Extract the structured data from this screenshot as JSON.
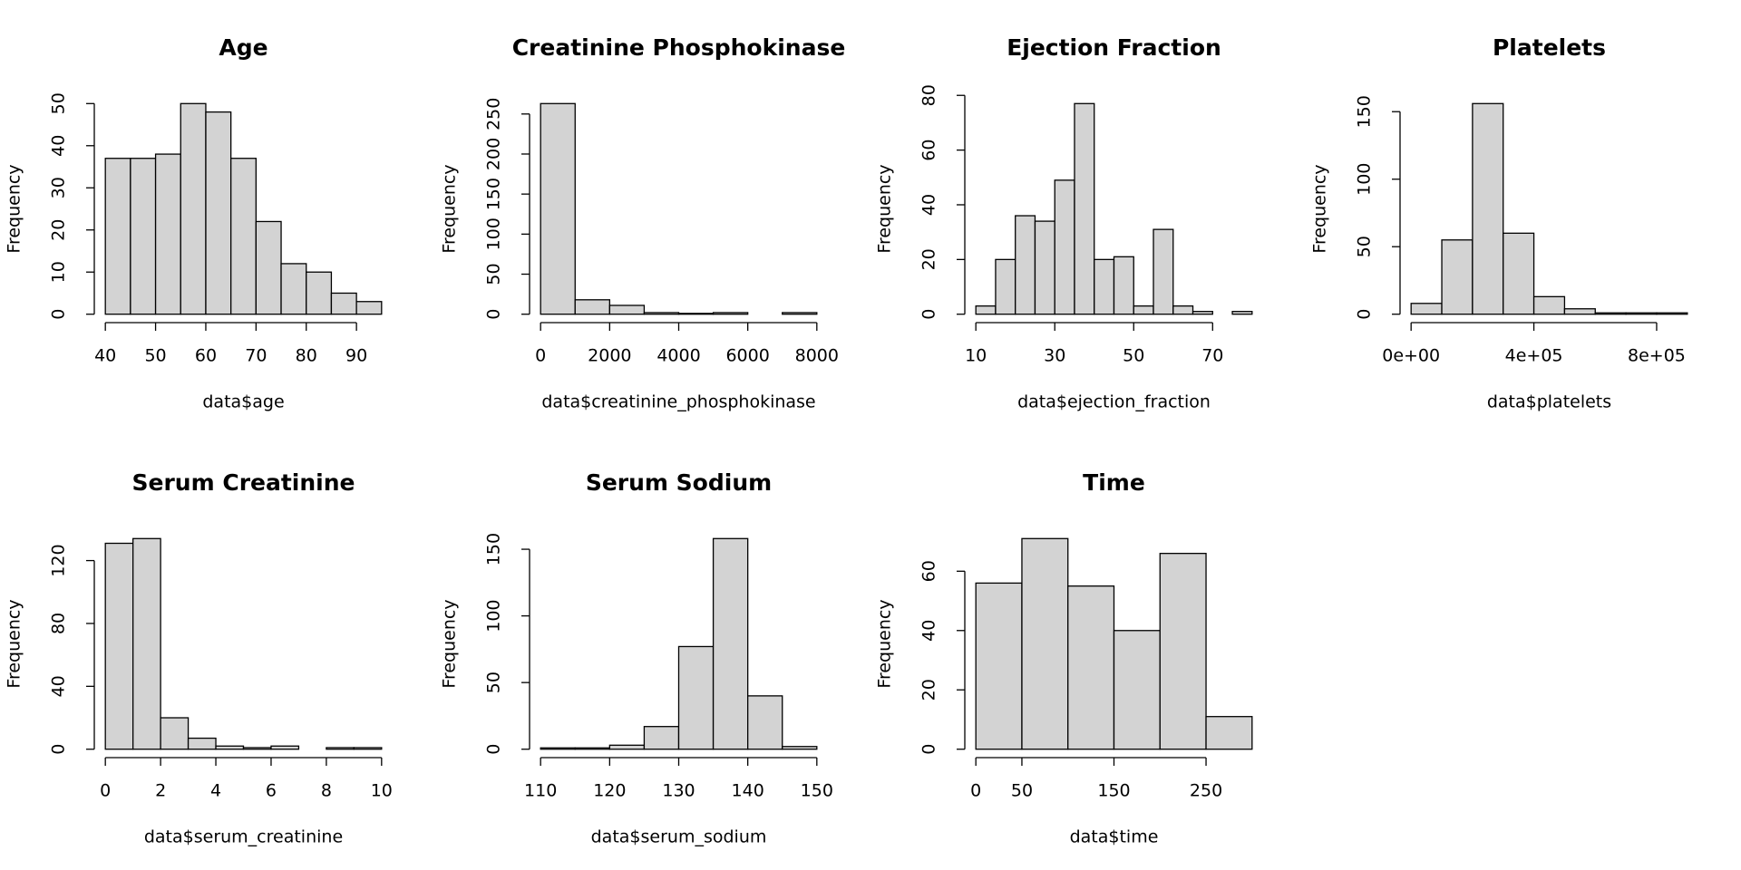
{
  "chart_data": [
    {
      "type": "histogram",
      "title": "Age",
      "xlabel": "data$age",
      "ylabel": "Frequency",
      "color": "#d3d3d3",
      "bins": [
        40,
        45,
        50,
        55,
        60,
        65,
        70,
        75,
        80,
        85,
        90,
        95
      ],
      "values": [
        37,
        37,
        38,
        50,
        48,
        37,
        22,
        12,
        10,
        5,
        3
      ],
      "xlim": [
        40,
        95
      ],
      "ylim": [
        0,
        50
      ],
      "xticks": [
        40,
        50,
        60,
        70,
        80,
        90
      ],
      "yticks": [
        0,
        10,
        20,
        30,
        40,
        50
      ]
    },
    {
      "type": "histogram",
      "title": "Creatinine Phosphokinase",
      "xlabel": "data$creatinine_phosphokinase",
      "ylabel": "Frequency",
      "color": "#d3d3d3",
      "bins": [
        0,
        1000,
        2000,
        3000,
        4000,
        5000,
        6000,
        7000,
        8000
      ],
      "values": [
        263,
        18,
        11,
        2,
        1,
        2,
        0,
        2
      ],
      "xlim": [
        0,
        8000
      ],
      "ylim": [
        0,
        263
      ],
      "xticks": [
        0,
        2000,
        4000,
        6000,
        8000
      ],
      "yticks": [
        0,
        50,
        100,
        150,
        200,
        250
      ]
    },
    {
      "type": "histogram",
      "title": "Ejection Fraction",
      "xlabel": "data$ejection_fraction",
      "ylabel": "Frequency",
      "color": "#d3d3d3",
      "bins": [
        10,
        15,
        20,
        25,
        30,
        35,
        40,
        45,
        50,
        55,
        60,
        65,
        70,
        75,
        80
      ],
      "values": [
        3,
        20,
        36,
        34,
        49,
        77,
        20,
        21,
        3,
        31,
        3,
        1,
        0,
        1
      ],
      "xlim": [
        10,
        80
      ],
      "ylim": [
        0,
        77
      ],
      "xticks": [
        10,
        30,
        50,
        70
      ],
      "yticks": [
        0,
        20,
        40,
        60,
        80
      ]
    },
    {
      "type": "histogram",
      "title": "Platelets",
      "xlabel": "data$platelets",
      "ylabel": "Frequency",
      "color": "#d3d3d3",
      "bins": [
        0,
        100000,
        200000,
        300000,
        400000,
        500000,
        600000,
        700000,
        800000,
        900000
      ],
      "values": [
        8,
        55,
        156,
        60,
        13,
        4,
        1,
        1,
        1
      ],
      "xlim": [
        0,
        900000
      ],
      "ylim": [
        0,
        156
      ],
      "xticks": [
        {
          "value": 0,
          "label": "0e+00"
        },
        {
          "value": 400000,
          "label": "4e+05"
        },
        {
          "value": 800000,
          "label": "8e+05"
        }
      ],
      "yticks": [
        0,
        50,
        100,
        150
      ]
    },
    {
      "type": "histogram",
      "title": "Serum Creatinine",
      "xlabel": "data$serum_creatinine",
      "ylabel": "Frequency",
      "color": "#d3d3d3",
      "bins": [
        0,
        1,
        2,
        3,
        4,
        5,
        6,
        7,
        8,
        9,
        10
      ],
      "values": [
        131,
        134,
        20,
        7,
        2,
        1,
        2,
        0,
        1,
        1
      ],
      "xlim": [
        0,
        10
      ],
      "ylim": [
        0,
        134
      ],
      "xticks": [
        0,
        2,
        4,
        6,
        8,
        10
      ],
      "yticks": [
        0,
        40,
        80,
        120
      ]
    },
    {
      "type": "histogram",
      "title": "Serum Sodium",
      "xlabel": "data$serum_sodium",
      "ylabel": "Frequency",
      "color": "#d3d3d3",
      "bins": [
        110,
        115,
        120,
        125,
        130,
        135,
        140,
        145,
        150
      ],
      "values": [
        1,
        1,
        3,
        17,
        77,
        158,
        40,
        2
      ],
      "xlim": [
        110,
        150
      ],
      "ylim": [
        0,
        158
      ],
      "xticks": [
        110,
        120,
        130,
        140,
        150
      ],
      "yticks": [
        0,
        50,
        100,
        150
      ]
    },
    {
      "type": "histogram",
      "title": "Time",
      "xlabel": "data$time",
      "ylabel": "Frequency",
      "color": "#d3d3d3",
      "bins": [
        0,
        50,
        100,
        150,
        200,
        250,
        300
      ],
      "values": [
        56,
        71,
        55,
        40,
        66,
        11
      ],
      "xlim": [
        0,
        300
      ],
      "ylim": [
        0,
        71
      ],
      "xticks": [
        0,
        50,
        150,
        250
      ],
      "yticks": [
        0,
        20,
        40,
        60
      ]
    }
  ]
}
